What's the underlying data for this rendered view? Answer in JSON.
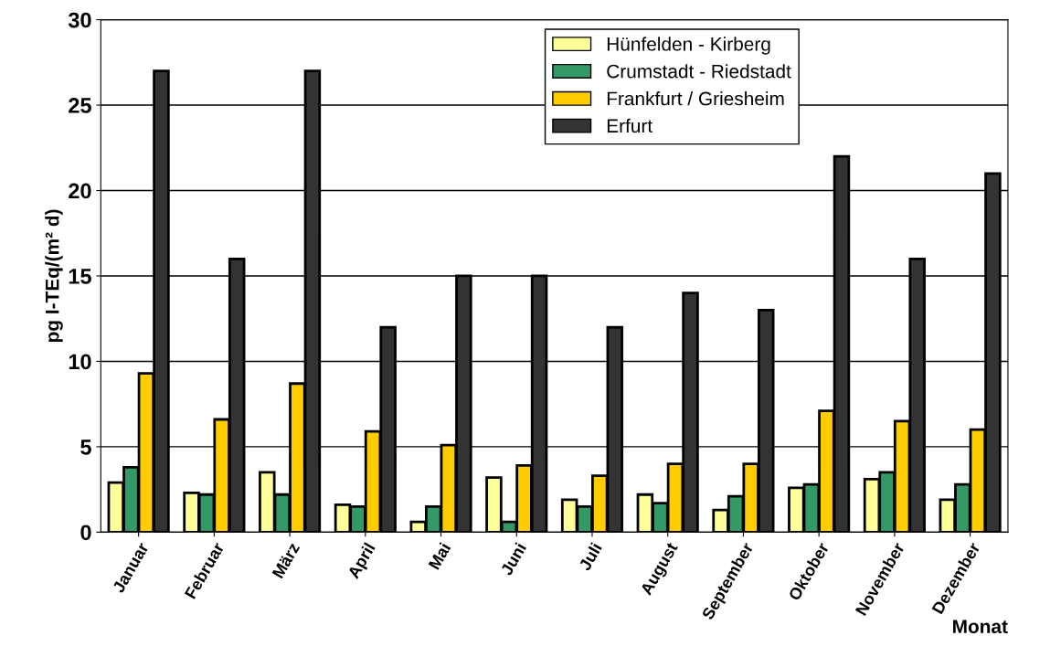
{
  "chart_data": {
    "type": "bar",
    "xlabel": "Monat",
    "ylabel": "pg I-TEq/(m² d)",
    "categories": [
      "Januar",
      "Februar",
      "März",
      "April",
      "Mai",
      "Juni",
      "Juli",
      "August",
      "September",
      "Oktober",
      "November",
      "Dezember"
    ],
    "series": [
      {
        "name": "Hünfelden - Kirberg",
        "color": "#ffff99",
        "values": [
          2.9,
          2.3,
          3.5,
          1.6,
          0.6,
          3.2,
          1.9,
          2.2,
          1.3,
          2.6,
          3.1,
          1.9
        ]
      },
      {
        "name": "Crumstadt - Riedstadt",
        "color": "#339966",
        "values": [
          3.8,
          2.2,
          2.2,
          1.5,
          1.5,
          0.6,
          1.5,
          1.7,
          2.1,
          2.8,
          3.5,
          2.8
        ]
      },
      {
        "name": "Frankfurt / Griesheim",
        "color": "#ffcc00",
        "values": [
          9.3,
          6.6,
          8.7,
          5.9,
          5.1,
          3.9,
          3.3,
          4.0,
          4.0,
          7.1,
          6.5,
          6.0
        ]
      },
      {
        "name": "Erfurt",
        "color": "#333333",
        "values": [
          27,
          16,
          27,
          12,
          15,
          15,
          12,
          14,
          13,
          22,
          16,
          21
        ]
      }
    ],
    "ylim": [
      0,
      30
    ],
    "yticks": [
      0,
      5,
      10,
      15,
      20,
      25,
      30
    ],
    "grid": "y",
    "legend": "top right"
  }
}
